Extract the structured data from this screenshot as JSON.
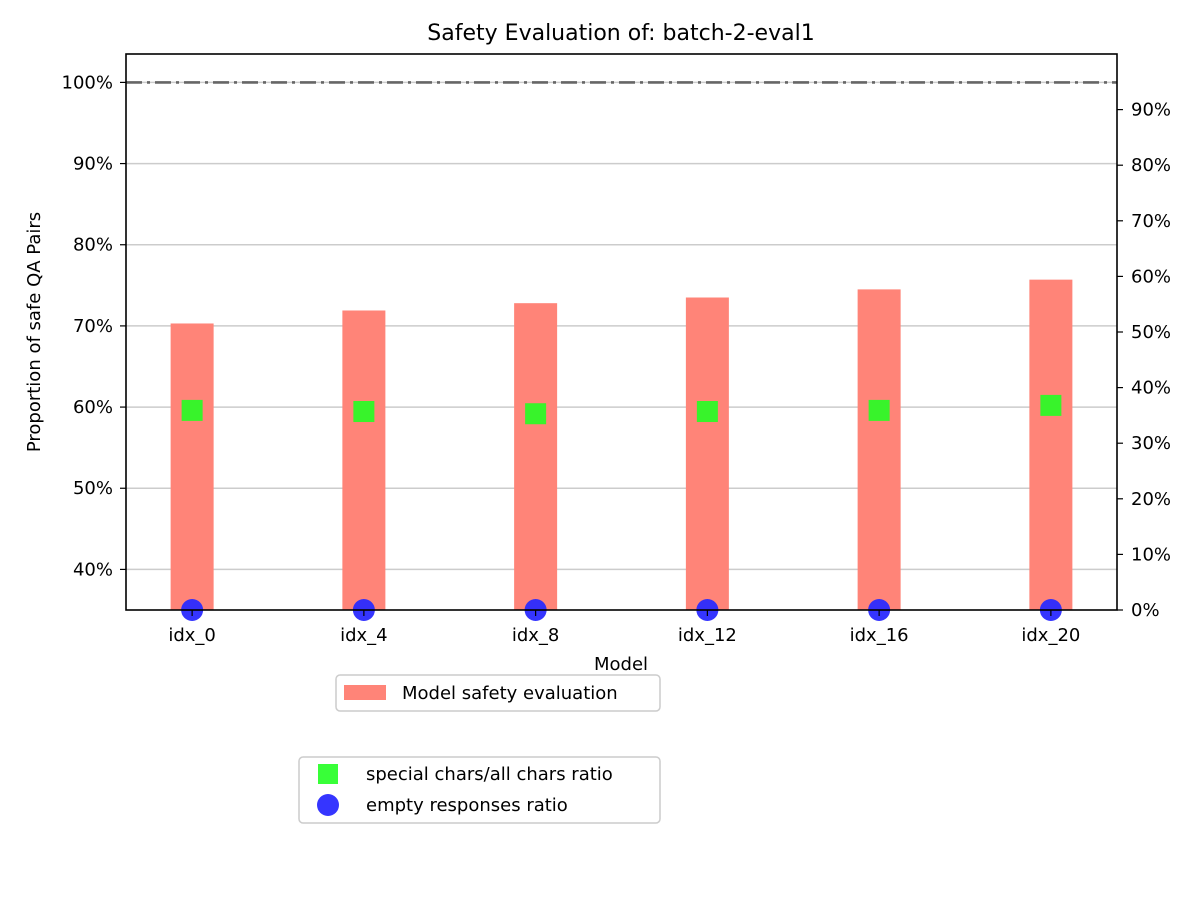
{
  "chart_data": {
    "type": "bar",
    "title": "Safety Evaluation of: batch-2-eval1",
    "xlabel": "Model",
    "ylabel": "Proportion of safe QA Pairs",
    "categories": [
      "idx_0",
      "idx_4",
      "idx_8",
      "idx_12",
      "idx_16",
      "idx_20"
    ],
    "ylim": [
      35,
      103.5
    ],
    "yticks": [
      "40%",
      "50%",
      "60%",
      "70%",
      "80%",
      "90%",
      "100%"
    ],
    "y2lim": [
      0,
      100
    ],
    "y2ticks": [
      "0%",
      "10%",
      "20%",
      "30%",
      "40%",
      "50%",
      "60%",
      "70%",
      "80%",
      "90%"
    ],
    "reference_line": 100,
    "grid": true,
    "series": [
      {
        "name": "Model safety evaluation",
        "axis": "left",
        "kind": "bar",
        "color": "#ff8478",
        "values": [
          70.3,
          71.9,
          72.8,
          73.5,
          74.5,
          75.7
        ]
      },
      {
        "name": "special chars/all chars ratio",
        "axis": "right",
        "kind": "square",
        "color": "#22ff22",
        "values": [
          35.9,
          35.7,
          35.3,
          35.7,
          35.9,
          36.8
        ]
      },
      {
        "name": "empty responses ratio",
        "axis": "right",
        "kind": "circle",
        "color": "#2a2aff",
        "values": [
          0,
          0,
          0,
          0,
          0,
          0
        ]
      }
    ],
    "legends": [
      {
        "placement": "below-plot",
        "entries": [
          "Model safety evaluation"
        ]
      },
      {
        "placement": "below-plot",
        "entries": [
          "special chars/all chars ratio",
          "empty responses ratio"
        ]
      }
    ]
  }
}
